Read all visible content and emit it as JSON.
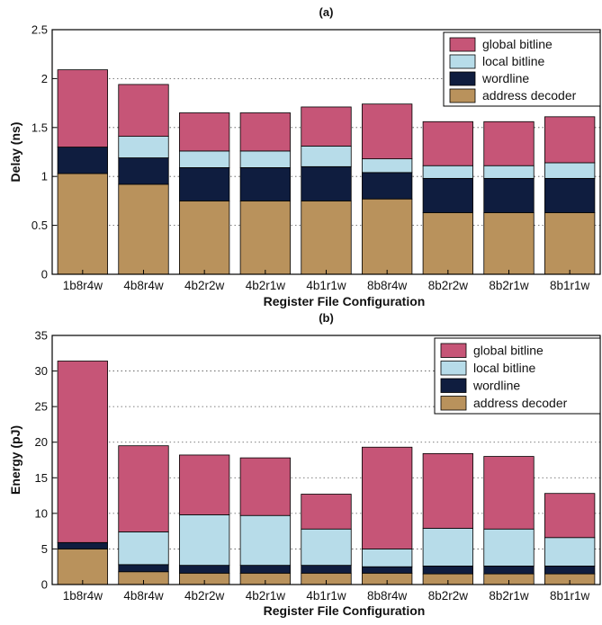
{
  "chart_data": [
    {
      "type": "bar",
      "stacked": true,
      "title": "(a)",
      "xlabel": "Register File Configuration",
      "ylabel": "Delay (ns)",
      "ylim": [
        0,
        2.5
      ],
      "yticks": [
        "0",
        "0.5",
        "1",
        "1.5",
        "2",
        "2.5"
      ],
      "grid": "horizontal dotted",
      "legend_position": "top-right",
      "categories": [
        "1b8r4w",
        "4b8r4w",
        "4b2r2w",
        "4b2r1w",
        "4b1r1w",
        "8b8r4w",
        "8b2r2w",
        "8b2r1w",
        "8b1r1w"
      ],
      "series": [
        {
          "name": "address decoder",
          "color": "#b9925c",
          "values": [
            1.03,
            0.92,
            0.75,
            0.75,
            0.75,
            0.77,
            0.63,
            0.63,
            0.63
          ]
        },
        {
          "name": "wordline",
          "color": "#0f1d3f",
          "values": [
            0.27,
            0.27,
            0.34,
            0.34,
            0.35,
            0.27,
            0.35,
            0.35,
            0.35
          ]
        },
        {
          "name": "local bitline",
          "color": "#b7dce9",
          "values": [
            0.0,
            0.22,
            0.17,
            0.17,
            0.21,
            0.14,
            0.13,
            0.13,
            0.16
          ]
        },
        {
          "name": "global bitline",
          "color": "#c65577",
          "values": [
            0.79,
            0.53,
            0.39,
            0.39,
            0.4,
            0.56,
            0.45,
            0.45,
            0.47
          ]
        }
      ]
    },
    {
      "type": "bar",
      "stacked": true,
      "title": "(b)",
      "xlabel": "Register File Configuration",
      "ylabel": "Energy (pJ)",
      "ylim": [
        0,
        35
      ],
      "yticks": [
        "0",
        "5",
        "10",
        "15",
        "20",
        "25",
        "30",
        "35"
      ],
      "grid": "horizontal dotted",
      "legend_position": "top-right",
      "categories": [
        "1b8r4w",
        "4b8r4w",
        "4b2r2w",
        "4b2r1w",
        "4b1r1w",
        "8b8r4w",
        "8b2r2w",
        "8b2r1w",
        "8b1r1w"
      ],
      "series": [
        {
          "name": "address decoder",
          "color": "#b9925c",
          "values": [
            5.0,
            1.8,
            1.6,
            1.6,
            1.6,
            1.6,
            1.5,
            1.5,
            1.5
          ]
        },
        {
          "name": "wordline",
          "color": "#0f1d3f",
          "values": [
            0.9,
            1.0,
            1.1,
            1.1,
            1.1,
            0.9,
            1.1,
            1.1,
            1.1
          ]
        },
        {
          "name": "local bitline",
          "color": "#b7dce9",
          "values": [
            0.0,
            4.6,
            7.1,
            7.0,
            5.1,
            2.5,
            5.3,
            5.2,
            4.0
          ]
        },
        {
          "name": "global bitline",
          "color": "#c65577",
          "values": [
            25.5,
            12.1,
            8.4,
            8.1,
            4.9,
            14.3,
            10.5,
            10.2,
            6.2
          ]
        }
      ]
    }
  ]
}
